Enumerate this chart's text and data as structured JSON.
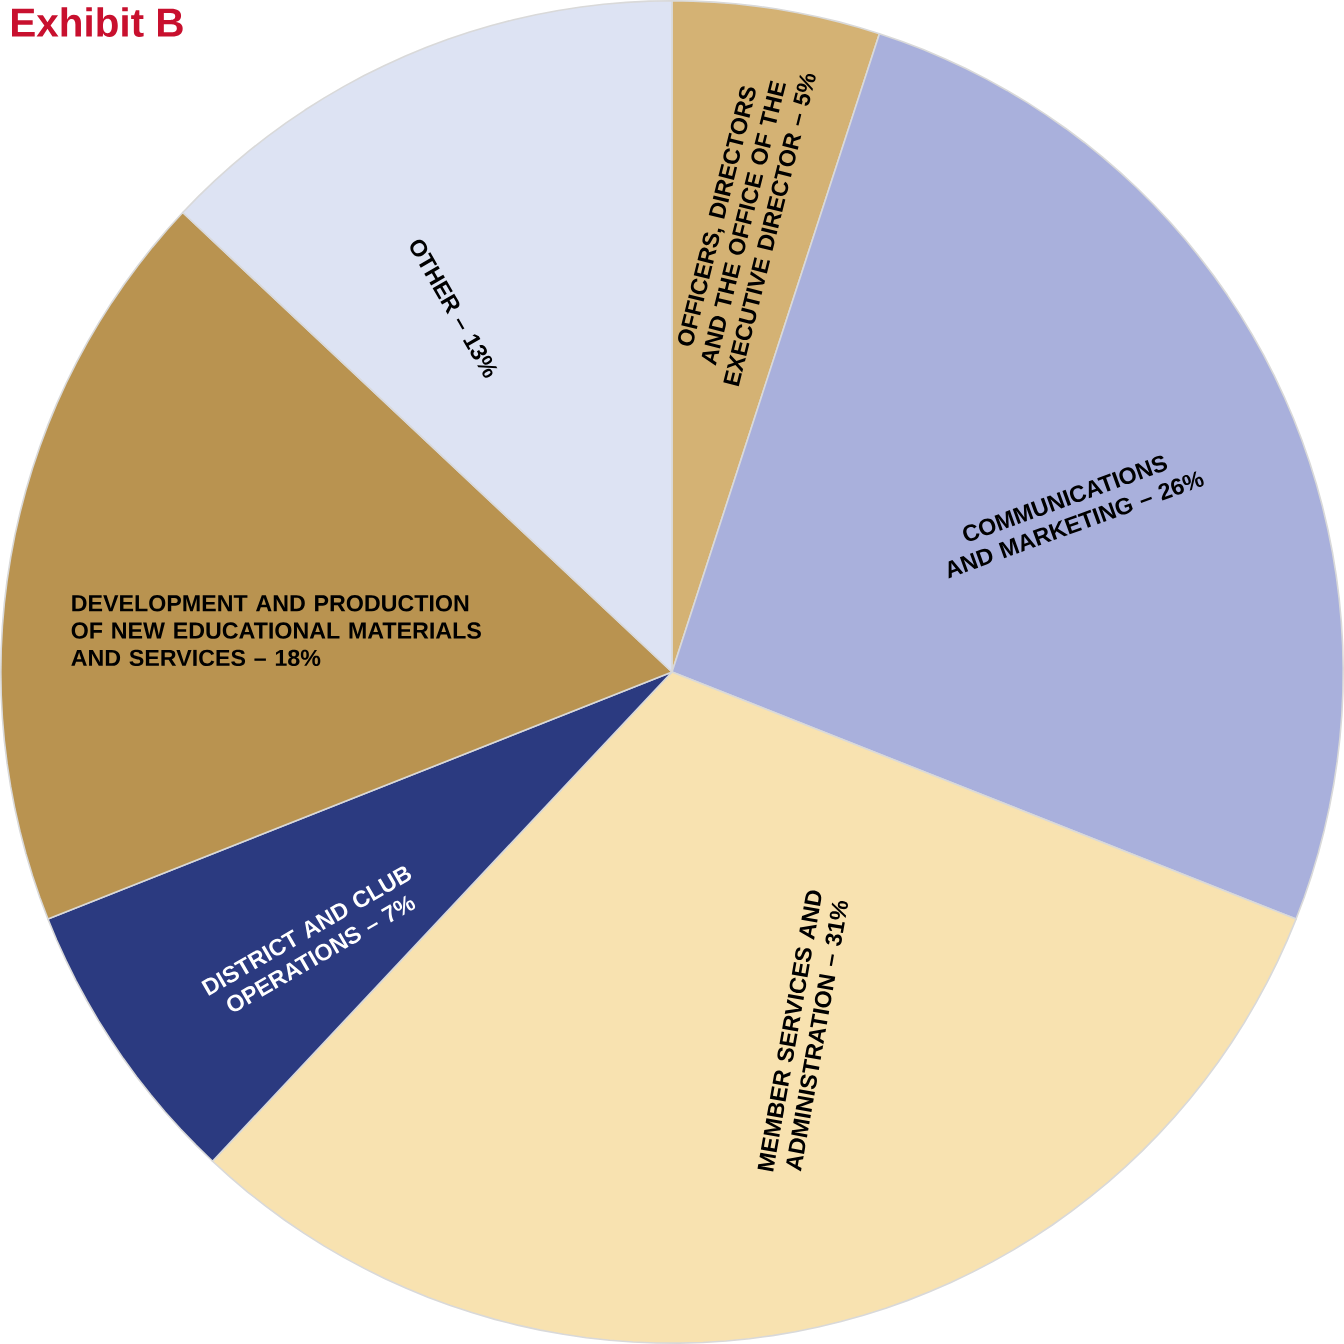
{
  "chart_data": {
    "type": "pie",
    "title": "Exhibit B",
    "categories": [
      "OFFICERS, DIRECTORS AND THE OFFICE OF THE EXECUTIVE DIRECTOR –",
      "COMMUNICATIONS AND MARKETING –",
      "MEMBER SERVICES AND ADMINISTRATION –",
      "DISTRICT AND CLUB OPERATIONS –",
      "DEVELOPMENT AND PRODUCTION OF NEW EDUCATIONAL MATERIALS AND SERVICES –",
      "OTHER –"
    ],
    "values": [
      5,
      26,
      31,
      7,
      18,
      13
    ],
    "value_labels": [
      "5%",
      "26%",
      "31%",
      "7%",
      "18%",
      "13%"
    ],
    "colors": [
      "#d4b274",
      "#a9b0dc",
      "#f8e2b0",
      "#2b3a80",
      "#b99350",
      "#dde3f3"
    ]
  }
}
